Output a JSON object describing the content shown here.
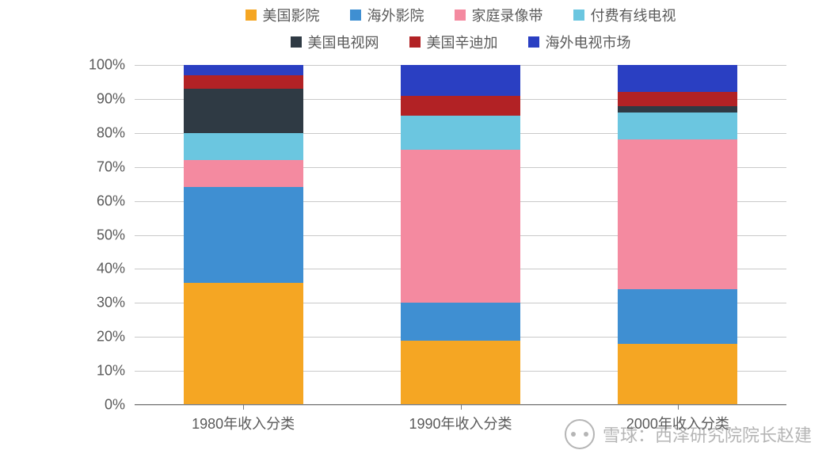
{
  "chart": {
    "type": "stacked-bar-100pct",
    "background_color": "#ffffff",
    "grid_color": "#c9c9c9",
    "axis_color": "#7a7a7a",
    "text_color": "#5a5a5a",
    "font_family": "Microsoft YaHei",
    "label_fontsize_pt": 14,
    "legend_fontsize_pt": 14,
    "ylim": [
      0,
      100
    ],
    "ytick_step": 10,
    "ytick_suffix": "%",
    "bar_width_fraction_of_group": 0.55,
    "categories": [
      "1980年收入分类",
      "1990年收入分类",
      "2000年收入分类"
    ],
    "series": [
      {
        "name": "美国影院",
        "color_hex": "#f5a623",
        "values": [
          36,
          19,
          18
        ]
      },
      {
        "name": "海外影院",
        "color_hex": "#3f8fd2",
        "values": [
          28,
          11,
          16
        ]
      },
      {
        "name": "家庭录像带",
        "color_hex": "#f48aa0",
        "values": [
          8,
          45,
          44
        ]
      },
      {
        "name": "付费有线电视",
        "color_hex": "#6bc6e0",
        "values": [
          8,
          10,
          8
        ]
      },
      {
        "name": "美国电视网",
        "color_hex": "#2f3a44",
        "values": [
          13,
          0,
          2
        ]
      },
      {
        "name": "美国辛迪加",
        "color_hex": "#b22225",
        "values": [
          4,
          6,
          4
        ]
      },
      {
        "name": "海外电视市场",
        "color_hex": "#2a3fc2",
        "values": [
          3,
          9,
          8
        ]
      }
    ]
  },
  "watermark": {
    "brand": "雪球",
    "author": "西泽研究院院长赵建",
    "separator": "："
  }
}
